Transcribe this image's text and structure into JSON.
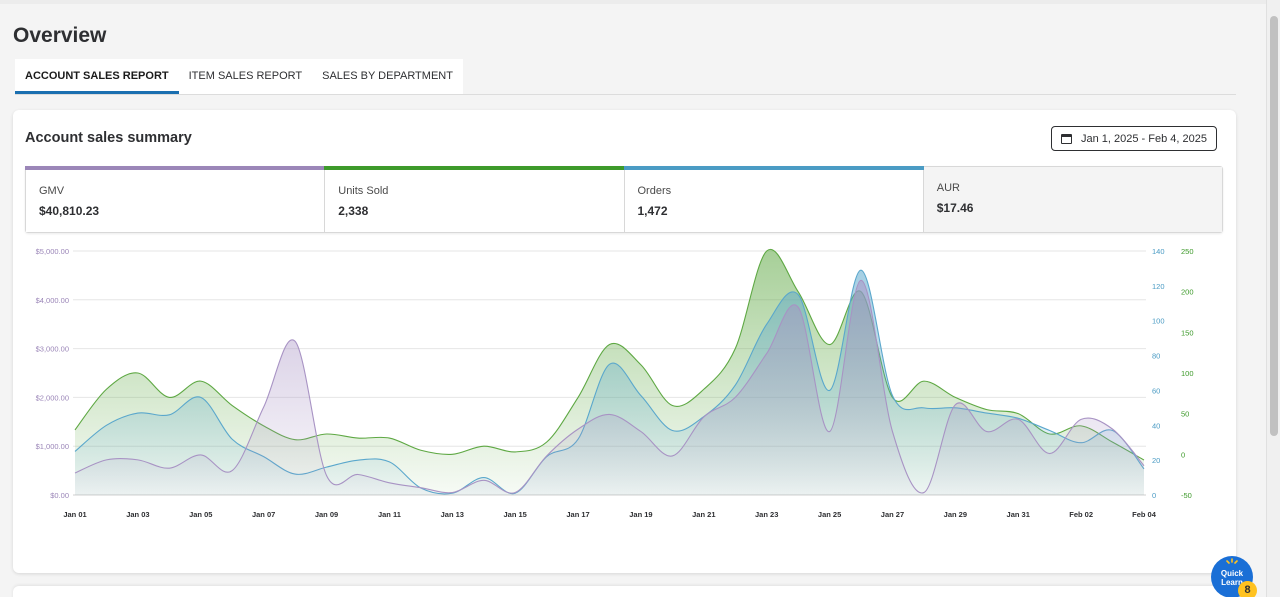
{
  "page": {
    "title": "Overview"
  },
  "tabs": [
    {
      "label": "ACCOUNT SALES REPORT",
      "active": true
    },
    {
      "label": "ITEM SALES REPORT",
      "active": false
    },
    {
      "label": "SALES BY DEPARTMENT",
      "active": false
    }
  ],
  "summary": {
    "title": "Account sales summary",
    "date_range": "Jan 1, 2025 - Feb 4, 2025"
  },
  "metrics": [
    {
      "label": "GMV",
      "value": "$40,810.23",
      "color": "#9b86b8"
    },
    {
      "label": "Units Sold",
      "value": "2,338",
      "color": "#3d9a2a"
    },
    {
      "label": "Orders",
      "value": "1,472",
      "color": "#4a9bc4"
    },
    {
      "label": "AUR",
      "value": "$17.46",
      "color": ""
    }
  ],
  "quick_learn": {
    "label": "Quick Learn",
    "badge": "8"
  },
  "chart_data": {
    "type": "area",
    "x": [
      "Jan 01",
      "Jan 02",
      "Jan 03",
      "Jan 04",
      "Jan 05",
      "Jan 06",
      "Jan 07",
      "Jan 08",
      "Jan 09",
      "Jan 10",
      "Jan 11",
      "Jan 12",
      "Jan 13",
      "Jan 14",
      "Jan 15",
      "Jan 16",
      "Jan 17",
      "Jan 18",
      "Jan 19",
      "Jan 20",
      "Jan 21",
      "Jan 22",
      "Jan 23",
      "Jan 24",
      "Jan 25",
      "Jan 26",
      "Jan 27",
      "Jan 28",
      "Jan 29",
      "Jan 30",
      "Jan 31",
      "Feb 01",
      "Feb 02",
      "Feb 03",
      "Feb 04"
    ],
    "x_tick_labels": [
      "Jan 01",
      "Jan 03",
      "Jan 05",
      "Jan 07",
      "Jan 09",
      "Jan 11",
      "Jan 13",
      "Jan 15",
      "Jan 17",
      "Jan 19",
      "Jan 21",
      "Jan 23",
      "Jan 25",
      "Jan 27",
      "Jan 29",
      "Jan 31",
      "Feb 02",
      "Feb 04"
    ],
    "axes": {
      "gmv": {
        "ticks": [
          "$0.00",
          "$1,000.00",
          "$2,000.00",
          "$3,000.00",
          "$4,000.00",
          "$5,000.00"
        ],
        "range": [
          0,
          5000
        ],
        "color": "#9b86b8"
      },
      "orders": {
        "ticks": [
          "0",
          "20",
          "40",
          "60",
          "80",
          "100",
          "120",
          "140"
        ],
        "range": [
          0,
          140
        ],
        "color": "#4a9bc4"
      },
      "units": {
        "ticks": [
          "-50",
          "0",
          "50",
          "100",
          "150",
          "200",
          "250"
        ],
        "range": [
          -50,
          250
        ],
        "color": "#3d9a2a"
      }
    },
    "grid": true,
    "legend": "none",
    "series": [
      {
        "name": "Units Sold",
        "axis": "units",
        "color": "#5ea843",
        "values": [
          30,
          80,
          100,
          70,
          90,
          60,
          35,
          18,
          25,
          20,
          20,
          5,
          0,
          10,
          3,
          15,
          70,
          135,
          110,
          60,
          80,
          130,
          250,
          200,
          135,
          200,
          70,
          90,
          70,
          55,
          50,
          25,
          35,
          15,
          -7
        ]
      },
      {
        "name": "Orders",
        "axis": "orders",
        "color": "#5aa7cc",
        "values": [
          25,
          40,
          47,
          46,
          56,
          32,
          22,
          12,
          16,
          20,
          19,
          4,
          1,
          10,
          1,
          22,
          32,
          75,
          57,
          37,
          45,
          63,
          98,
          115,
          60,
          129,
          57,
          50,
          50,
          47,
          44,
          37,
          30,
          37,
          15
        ]
      },
      {
        "name": "GMV",
        "axis": "gmv",
        "color": "#a893c4",
        "values": [
          450,
          720,
          720,
          550,
          820,
          500,
          1800,
          3150,
          400,
          420,
          250,
          150,
          50,
          300,
          50,
          800,
          1350,
          1650,
          1300,
          800,
          1600,
          2000,
          2900,
          3850,
          1300,
          4400,
          1300,
          50,
          1850,
          1300,
          1550,
          850,
          1550,
          1350,
          600
        ]
      }
    ]
  }
}
